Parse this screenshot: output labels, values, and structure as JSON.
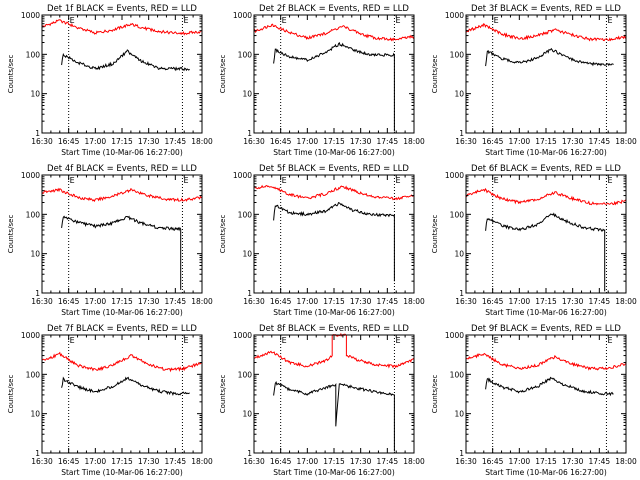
{
  "chart_data": [
    {
      "type": "line",
      "title": "Det 1f BLACK = Events, RED = LLD",
      "xlabel": "Start Time (10-Mar-06 16:27:00)",
      "ylabel": "Counts/sec",
      "yscale": "log",
      "xlim": [
        "16:30",
        "18:00"
      ],
      "ylim": [
        1,
        1000
      ],
      "x_ticks": [
        "16:30",
        "16:45",
        "17:00",
        "17:15",
        "17:30",
        "17:45",
        "18:00"
      ],
      "y_ticks": [
        "1",
        "10",
        "100",
        "1000"
      ],
      "marker_text": "E",
      "dotted_lines": [
        "16:45",
        "17:49"
      ],
      "series": [
        {
          "color": "#ff0000",
          "x": [
            "16:30",
            "16:40",
            "16:50",
            "17:00",
            "17:10",
            "17:20",
            "17:30",
            "17:40",
            "17:50",
            "18:00"
          ],
          "values": [
            500,
            720,
            480,
            350,
            420,
            580,
            430,
            360,
            340,
            380
          ]
        },
        {
          "color": "#000000",
          "x": [
            "16:41",
            "16:42",
            "16:50",
            "17:00",
            "17:10",
            "17:18",
            "17:25",
            "17:35",
            "17:45",
            "17:53"
          ],
          "values": [
            55,
            98,
            62,
            43,
            58,
            120,
            70,
            45,
            43,
            42
          ]
        }
      ]
    },
    {
      "type": "line",
      "title": "Det 2f BLACK = Events, RED = LLD",
      "xlabel": "Start Time (10-Mar-06 16:27:00)",
      "ylabel": "Counts/sec",
      "yscale": "log",
      "xlim": [
        "16:30",
        "18:00"
      ],
      "ylim": [
        1,
        1000
      ],
      "x_ticks": [
        "16:30",
        "16:45",
        "17:00",
        "17:15",
        "17:30",
        "17:45",
        "18:00"
      ],
      "y_ticks": [
        "1",
        "10",
        "100",
        "1000"
      ],
      "marker_text": "E",
      "dotted_lines": [
        "16:45",
        "17:49"
      ],
      "series": [
        {
          "color": "#ff0000",
          "x": [
            "16:30",
            "16:40",
            "16:50",
            "17:00",
            "17:10",
            "17:20",
            "17:30",
            "17:40",
            "17:50",
            "18:00"
          ],
          "values": [
            380,
            560,
            360,
            260,
            340,
            520,
            330,
            250,
            240,
            280
          ]
        },
        {
          "color": "#000000",
          "x": [
            "16:41",
            "16:42",
            "16:50",
            "17:00",
            "17:10",
            "17:18",
            "17:25",
            "17:35",
            "17:45",
            "17:49",
            "17:49"
          ],
          "values": [
            55,
            130,
            85,
            72,
            110,
            185,
            135,
            98,
            95,
            95,
            1.1
          ]
        }
      ]
    },
    {
      "type": "line",
      "title": "Det 3f BLACK = Events, RED = LLD",
      "xlabel": "Start Time (10-Mar-06 16:27:00)",
      "ylabel": "Counts/sec",
      "yscale": "log",
      "xlim": [
        "16:30",
        "18:00"
      ],
      "ylim": [
        1,
        1000
      ],
      "x_ticks": [
        "16:30",
        "16:45",
        "17:00",
        "17:15",
        "17:30",
        "17:45",
        "18:00"
      ],
      "y_ticks": [
        "1",
        "10",
        "100",
        "1000"
      ],
      "marker_text": "E",
      "dotted_lines": [
        "16:45",
        "17:49"
      ],
      "series": [
        {
          "color": "#ff0000",
          "x": [
            "16:30",
            "16:40",
            "16:50",
            "17:00",
            "17:10",
            "17:20",
            "17:30",
            "17:40",
            "17:50",
            "18:00"
          ],
          "values": [
            380,
            560,
            330,
            250,
            300,
            420,
            310,
            240,
            235,
            280
          ]
        },
        {
          "color": "#000000",
          "x": [
            "16:41",
            "16:42",
            "16:50",
            "17:00",
            "17:10",
            "17:18",
            "17:25",
            "17:35",
            "17:45",
            "17:53"
          ],
          "values": [
            50,
            120,
            78,
            60,
            80,
            135,
            90,
            62,
            55,
            55
          ]
        }
      ]
    },
    {
      "type": "line",
      "title": "Det 4f BLACK = Events, RED = LLD",
      "xlabel": "Start Time (10-Mar-06 16:27:00)",
      "ylabel": "Counts/sec",
      "yscale": "log",
      "xlim": [
        "16:30",
        "18:00"
      ],
      "ylim": [
        1,
        1000
      ],
      "x_ticks": [
        "16:30",
        "16:45",
        "17:00",
        "17:15",
        "17:30",
        "17:45",
        "18:00"
      ],
      "y_ticks": [
        "1",
        "10",
        "100",
        "1000"
      ],
      "marker_text": "E",
      "dotted_lines": [
        "16:45",
        "17:49"
      ],
      "series": [
        {
          "color": "#ff0000",
          "x": [
            "16:30",
            "16:40",
            "16:50",
            "17:00",
            "17:10",
            "17:20",
            "17:30",
            "17:40",
            "17:50",
            "18:00"
          ],
          "values": [
            360,
            420,
            270,
            230,
            290,
            420,
            300,
            240,
            230,
            270
          ]
        },
        {
          "color": "#000000",
          "x": [
            "16:41",
            "16:42",
            "16:50",
            "17:00",
            "17:10",
            "17:18",
            "17:25",
            "17:35",
            "17:45",
            "17:48",
            "17:48"
          ],
          "values": [
            45,
            90,
            62,
            50,
            60,
            85,
            62,
            46,
            42,
            42,
            1.2
          ]
        }
      ]
    },
    {
      "type": "line",
      "title": "Det 5f BLACK = Events, RED = LLD",
      "xlabel": "Start Time (10-Mar-06 16:27:00)",
      "ylabel": "Counts/sec",
      "yscale": "log",
      "xlim": [
        "16:30",
        "18:00"
      ],
      "ylim": [
        1,
        1000
      ],
      "x_ticks": [
        "16:30",
        "16:45",
        "17:00",
        "17:15",
        "17:30",
        "17:45",
        "18:00"
      ],
      "y_ticks": [
        "1",
        "10",
        "100",
        "1000"
      ],
      "marker_text": "E",
      "dotted_lines": [
        "16:45",
        "17:49"
      ],
      "series": [
        {
          "color": "#ff0000",
          "x": [
            "16:30",
            "16:40",
            "16:50",
            "17:00",
            "17:10",
            "17:20",
            "17:30",
            "17:40",
            "17:50",
            "18:00"
          ],
          "values": [
            470,
            520,
            320,
            260,
            330,
            520,
            340,
            270,
            250,
            300
          ]
        },
        {
          "color": "#000000",
          "x": [
            "16:41",
            "16:42",
            "16:50",
            "17:00",
            "17:10",
            "17:18",
            "17:25",
            "17:35",
            "17:45",
            "17:49",
            "17:49"
          ],
          "values": [
            70,
            170,
            110,
            100,
            120,
            190,
            130,
            100,
            95,
            95,
            2
          ]
        }
      ]
    },
    {
      "type": "line",
      "title": "Det 6f BLACK = Events, RED = LLD",
      "xlabel": "Start Time (10-Mar-06 16:27:00)",
      "ylabel": "Counts/sec",
      "yscale": "log",
      "xlim": [
        "16:30",
        "18:00"
      ],
      "ylim": [
        1,
        1000
      ],
      "x_ticks": [
        "16:30",
        "16:45",
        "17:00",
        "17:15",
        "17:30",
        "17:45",
        "18:00"
      ],
      "y_ticks": [
        "1",
        "10",
        "100",
        "1000"
      ],
      "marker_text": "E",
      "dotted_lines": [
        "16:45",
        "17:49"
      ],
      "series": [
        {
          "color": "#ff0000",
          "x": [
            "16:30",
            "16:40",
            "16:50",
            "17:00",
            "17:10",
            "17:20",
            "17:30",
            "17:40",
            "17:50",
            "18:00"
          ],
          "values": [
            300,
            430,
            250,
            200,
            240,
            360,
            250,
            190,
            180,
            220
          ]
        },
        {
          "color": "#000000",
          "x": [
            "16:41",
            "16:42",
            "16:50",
            "17:00",
            "17:10",
            "17:18",
            "17:25",
            "17:35",
            "17:45",
            "17:48",
            "17:48"
          ],
          "values": [
            40,
            80,
            52,
            40,
            55,
            105,
            70,
            48,
            40,
            40,
            1.1
          ]
        }
      ]
    },
    {
      "type": "line",
      "title": "Det 7f BLACK = Events, RED = LLD",
      "xlabel": "Start Time (10-Mar-06 16:27:00)",
      "ylabel": "Counts/sec",
      "yscale": "log",
      "xlim": [
        "16:30",
        "18:00"
      ],
      "ylim": [
        1,
        1000
      ],
      "x_ticks": [
        "16:30",
        "16:45",
        "17:00",
        "17:15",
        "17:30",
        "17:45",
        "18:00"
      ],
      "y_ticks": [
        "1",
        "10",
        "100",
        "1000"
      ],
      "marker_text": "E",
      "dotted_lines": [
        "16:45",
        "17:49"
      ],
      "series": [
        {
          "color": "#ff0000",
          "x": [
            "16:30",
            "16:40",
            "16:50",
            "17:00",
            "17:10",
            "17:20",
            "17:30",
            "17:40",
            "17:50",
            "18:00"
          ],
          "values": [
            220,
            330,
            170,
            130,
            170,
            300,
            180,
            130,
            140,
            200
          ]
        },
        {
          "color": "#000000",
          "x": [
            "16:41",
            "16:42",
            "16:50",
            "17:00",
            "17:10",
            "17:18",
            "17:25",
            "17:35",
            "17:45",
            "17:53"
          ],
          "values": [
            45,
            75,
            48,
            36,
            50,
            80,
            55,
            38,
            32,
            34
          ]
        }
      ]
    },
    {
      "type": "line",
      "title": "Det 8f BLACK = Events, RED = LLD",
      "xlabel": "Start Time (10-Mar-06 16:27:00)",
      "ylabel": "Counts/sec",
      "yscale": "log",
      "xlim": [
        "16:30",
        "18:00"
      ],
      "ylim": [
        1,
        1000
      ],
      "x_ticks": [
        "16:30",
        "16:45",
        "17:00",
        "17:15",
        "17:30",
        "17:45",
        "18:00"
      ],
      "y_ticks": [
        "1",
        "10",
        "100",
        "1000"
      ],
      "marker_text": "E",
      "dotted_lines": [
        "16:45",
        "17:49"
      ],
      "series": [
        {
          "color": "#ff0000",
          "x": [
            "16:30",
            "16:40",
            "16:50",
            "17:00",
            "17:10",
            "17:14",
            "17:14",
            "17:22",
            "17:22",
            "17:30",
            "17:40",
            "17:50",
            "18:00"
          ],
          "values": [
            260,
            380,
            200,
            160,
            220,
            300,
            1000,
            1000,
            300,
            220,
            170,
            160,
            240
          ]
        },
        {
          "color": "#000000",
          "x": [
            "16:41",
            "16:42",
            "16:50",
            "17:00",
            "17:10",
            "17:16",
            "17:16",
            "17:18",
            "17:25",
            "17:35",
            "17:45",
            "17:49",
            "17:49"
          ],
          "values": [
            30,
            62,
            40,
            32,
            45,
            55,
            5,
            55,
            48,
            38,
            32,
            30,
            1.1
          ]
        }
      ]
    },
    {
      "type": "line",
      "title": "Det 9f BLACK = Events, RED = LLD",
      "xlabel": "Start Time (10-Mar-06 16:27:00)",
      "ylabel": "Counts/sec",
      "yscale": "log",
      "xlim": [
        "16:30",
        "18:00"
      ],
      "ylim": [
        1,
        1000
      ],
      "x_ticks": [
        "16:30",
        "16:45",
        "17:00",
        "17:15",
        "17:30",
        "17:45",
        "18:00"
      ],
      "y_ticks": [
        "1",
        "10",
        "100",
        "1000"
      ],
      "marker_text": "E",
      "dotted_lines": [
        "16:45",
        "17:49"
      ],
      "series": [
        {
          "color": "#ff0000",
          "x": [
            "16:30",
            "16:40",
            "16:50",
            "17:00",
            "17:10",
            "17:20",
            "17:30",
            "17:40",
            "17:50",
            "18:00"
          ],
          "values": [
            250,
            330,
            180,
            140,
            170,
            280,
            180,
            140,
            140,
            190
          ]
        },
        {
          "color": "#000000",
          "x": [
            "16:41",
            "16:42",
            "16:50",
            "17:00",
            "17:10",
            "17:18",
            "17:25",
            "17:35",
            "17:45",
            "17:53"
          ],
          "values": [
            42,
            75,
            48,
            36,
            48,
            82,
            55,
            38,
            33,
            32
          ]
        }
      ]
    }
  ]
}
